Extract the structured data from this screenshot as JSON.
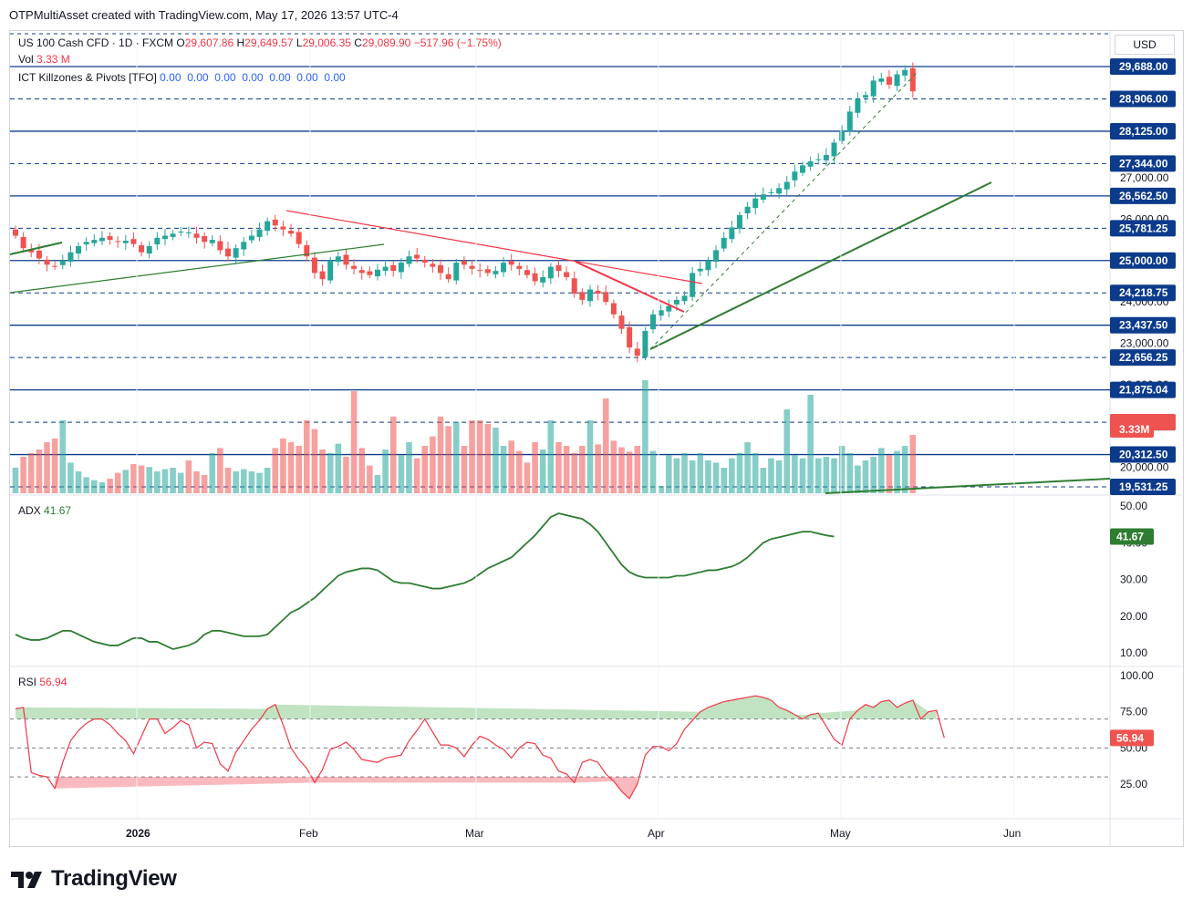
{
  "header": {
    "attribution": "OTPMultiAsset created with TradingView.com, May 17, 2026 13:57 UTC-4"
  },
  "legend": {
    "symbol": "US 100 Cash CFD · 1D · FXCM",
    "o_label": "O",
    "o_value": "29,607.86",
    "h_label": "H",
    "h_value": "29,649.57",
    "l_label": "L",
    "l_value": "29,006.35",
    "c_label": "C",
    "c_value": "29,089.90",
    "change": "−517.96 (−1.75%)",
    "vol_label": "Vol",
    "vol_value": "3.33 M",
    "ict_label": "ICT Killzones & Pivots [TFO]",
    "ict_values": "0.00  0.00  0.00  0.00  0.00  0.00  0.00",
    "adx_label": "ADX",
    "adx_value": "41.67",
    "rsi_label": "RSI",
    "rsi_value": "56.94"
  },
  "currency": "USD",
  "branding": {
    "name": "TradingView"
  },
  "colors": {
    "up": "#26a69a",
    "down": "#ef5350",
    "level": "#0d3b8c",
    "trend_green": "#2e7d32",
    "trend_red": "#f23645",
    "adx": "#2e7d32",
    "rsi": "#f23645"
  },
  "chart_data": {
    "type": "candlestick",
    "x_labels": [
      "2026",
      "Feb",
      "Mar",
      "Apr",
      "May",
      "Jun"
    ],
    "price_axis_labels": [
      "27,000.00",
      "26,000.00",
      "25,000.00",
      "24,000.00",
      "23,000.00",
      "22,000.00",
      "21,000.00",
      "20,000.00"
    ],
    "levels": [
      {
        "price": 29688.0,
        "label": "29,688.00",
        "style": "solid"
      },
      {
        "price": 28906.0,
        "label": "28,906.00",
        "style": "dashed"
      },
      {
        "price": 28125.0,
        "label": "28,125.00",
        "style": "solid"
      },
      {
        "price": 27344.0,
        "label": "27,344.00",
        "style": "dashed"
      },
      {
        "price": 26562.5,
        "label": "26,562.50",
        "style": "solid"
      },
      {
        "price": 25781.25,
        "label": "25,781.25",
        "style": "dashed"
      },
      {
        "price": 25000.0,
        "label": "25,000.00",
        "style": "solid"
      },
      {
        "price": 24218.75,
        "label": "24,218.75",
        "style": "dashed"
      },
      {
        "price": 23437.5,
        "label": "23,437.50",
        "style": "solid"
      },
      {
        "price": 22656.25,
        "label": "22,656.25",
        "style": "dashed"
      },
      {
        "price": 21875.04,
        "label": "21,875.04",
        "style": "solid"
      },
      {
        "price": 21093.75,
        "label": "21,093.75",
        "style": "dashed"
      },
      {
        "price": 20312.5,
        "label": "20,312.50",
        "style": "solid"
      },
      {
        "price": 19531.25,
        "label": "19,531.25",
        "style": "dashed"
      }
    ],
    "last_price_label": "29,089.90",
    "volume_label": "3.33M",
    "closes": [
      25600,
      25300,
      25200,
      25050,
      24900,
      24850,
      25000,
      25200,
      25350,
      25450,
      25500,
      25550,
      25500,
      25450,
      25480,
      25400,
      25200,
      25350,
      25550,
      25600,
      25650,
      25700,
      25680,
      25550,
      25450,
      25500,
      25250,
      25100,
      25300,
      25450,
      25600,
      25750,
      25950,
      25850,
      25750,
      25650,
      25400,
      25100,
      24700,
      24550,
      25000,
      25100,
      24900,
      24800,
      24700,
      24650,
      24780,
      24850,
      24750,
      24950,
      25100,
      25050,
      24950,
      24850,
      24700,
      24550,
      24950,
      24900,
      24800,
      24750,
      24700,
      24750,
      24950,
      24900,
      24800,
      24650,
      24500,
      24600,
      24850,
      24750,
      24600,
      24200,
      24050,
      24300,
      24200,
      24000,
      23700,
      23350,
      22900,
      22700,
      23300,
      23700,
      23800,
      23900,
      24050,
      24150,
      24700,
      24800,
      25000,
      25250,
      25550,
      25800,
      26100,
      26300,
      26500,
      26600,
      26650,
      26750,
      26900,
      27150,
      27300,
      27400,
      27450,
      27550,
      27850,
      28150,
      28600,
      28900,
      29000,
      29350,
      29400,
      29250,
      29500,
      29607,
      29090
    ],
    "volume_rel": [
      0.35,
      0.5,
      0.55,
      0.6,
      0.7,
      0.75,
      1.0,
      0.42,
      0.3,
      0.22,
      0.18,
      0.15,
      0.2,
      0.28,
      0.32,
      0.4,
      0.38,
      0.36,
      0.3,
      0.33,
      0.35,
      0.28,
      0.45,
      0.3,
      0.25,
      0.55,
      0.62,
      0.35,
      0.3,
      0.33,
      0.3,
      0.28,
      0.35,
      0.62,
      0.75,
      0.7,
      0.65,
      1.0,
      0.88,
      0.6,
      0.55,
      0.68,
      0.5,
      1.4,
      0.62,
      0.38,
      0.25,
      0.6,
      1.05,
      0.52,
      0.7,
      0.48,
      0.65,
      0.78,
      1.05,
      0.92,
      0.98,
      0.65,
      1.0,
      1.0,
      0.95,
      0.9,
      0.65,
      0.72,
      0.58,
      0.42,
      0.7,
      0.6,
      1.0,
      0.7,
      0.65,
      0.55,
      0.65,
      1.0,
      0.67,
      1.3,
      0.72,
      0.63,
      0.57,
      0.65,
      1.55,
      0.58,
      0.1,
      0.52,
      0.48,
      0.55,
      0.45,
      0.55,
      0.45,
      0.42,
      0.35,
      0.48,
      0.55,
      0.7,
      0.55,
      0.35,
      0.48,
      0.45,
      1.15,
      0.52,
      0.48,
      1.35,
      0.48,
      0.5,
      0.48,
      0.65,
      0.55,
      0.38,
      0.45,
      0.5,
      0.62,
      0.52,
      0.58,
      0.65,
      0.8
    ],
    "adx": {
      "axis_labels": [
        "50.00",
        "40.00",
        "30.00",
        "20.00",
        "10.00"
      ],
      "values": [
        15,
        14,
        13.5,
        13.5,
        14,
        15,
        16,
        16,
        15,
        14,
        13,
        12.5,
        12,
        12,
        13,
        14,
        14,
        13,
        13,
        12,
        11,
        11.5,
        12,
        13,
        15,
        16,
        16,
        15.5,
        15,
        14.5,
        14.5,
        14.5,
        15,
        17,
        19,
        21,
        22,
        23.5,
        25,
        27,
        29,
        31,
        32,
        32.5,
        33,
        33,
        32.5,
        31,
        29.5,
        29,
        29,
        28.5,
        28,
        27.5,
        27.5,
        28,
        28.5,
        29,
        30,
        31.5,
        33,
        34,
        35,
        36,
        38,
        40,
        42,
        44.5,
        47,
        48,
        47.5,
        47,
        46.5,
        45,
        43,
        40,
        37,
        34,
        32,
        31,
        30.5,
        30.5,
        30.5,
        30.5,
        31,
        31,
        31.5,
        32,
        32.5,
        32.5,
        33,
        33.5,
        34.5,
        36,
        38,
        40,
        41,
        41.5,
        42,
        42.5,
        43,
        43,
        42.5,
        42,
        41.67
      ]
    },
    "rsi": {
      "axis_labels": [
        "100.00",
        "75.00",
        "50.00",
        "25.00"
      ],
      "overbought": 70,
      "oversold": 30,
      "values": [
        77,
        78,
        33,
        31,
        30,
        22,
        40,
        55,
        62,
        67,
        70,
        70,
        66,
        60,
        55,
        46,
        58,
        70,
        70,
        60,
        64,
        69,
        66,
        50,
        54,
        53,
        39,
        34,
        47,
        55,
        63,
        69,
        77,
        80,
        66,
        50,
        42,
        36,
        26,
        35,
        49,
        51,
        54,
        49,
        42,
        41,
        40,
        43,
        44,
        45,
        55,
        62,
        70,
        61,
        52,
        52,
        50,
        44,
        52,
        58,
        56,
        52,
        49,
        43,
        50,
        54,
        53,
        45,
        43,
        34,
        32,
        26,
        40,
        42,
        40,
        32,
        27,
        20,
        15,
        25,
        45,
        51,
        51,
        48,
        53,
        63,
        69,
        75,
        78,
        80,
        82,
        83,
        84,
        85,
        86,
        85,
        83,
        78,
        76,
        73,
        70,
        73,
        74,
        65,
        56,
        52,
        70,
        76,
        80,
        78,
        82,
        83,
        78,
        81,
        83,
        70,
        75,
        76,
        56.94
      ]
    }
  }
}
